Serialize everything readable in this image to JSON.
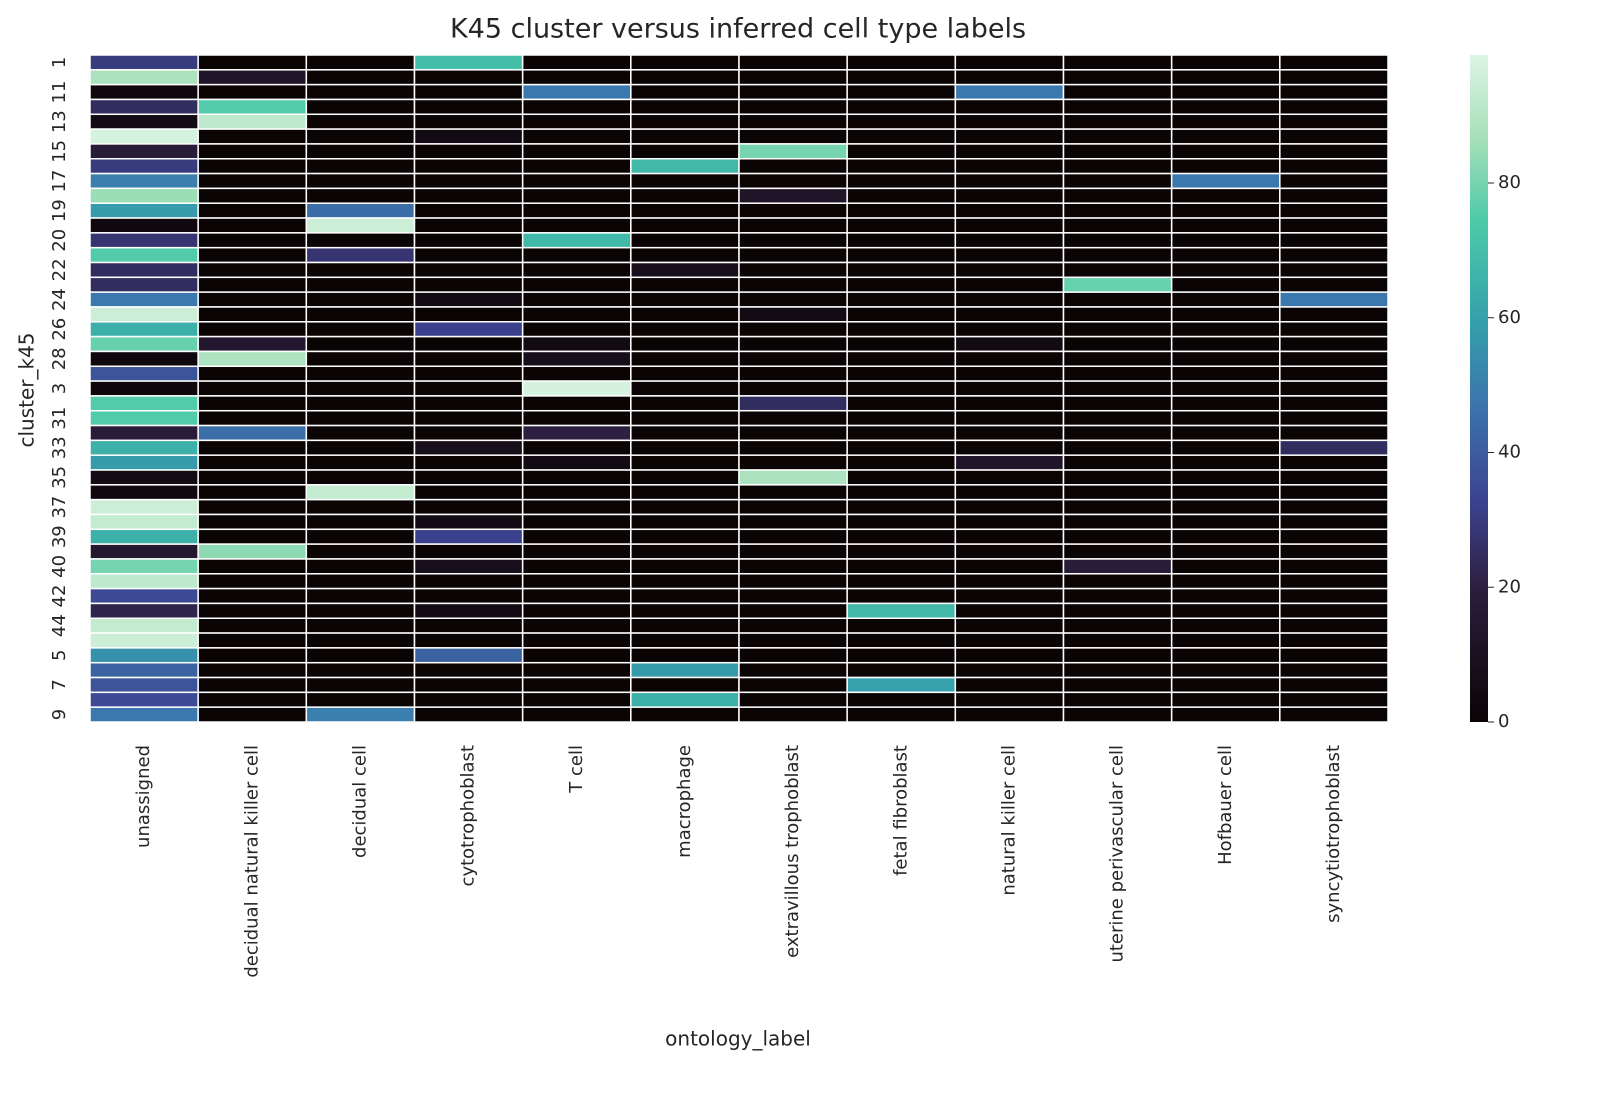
{
  "chart_data": {
    "type": "heatmap",
    "title": "K45 cluster versus inferred cell type labels",
    "x_label": "ontology_label",
    "y_label": "cluster_k45",
    "categories": [
      "unassigned",
      "decidual natural killer cell",
      "decidual cell",
      "cytotrophoblast",
      "T cell",
      "macrophage",
      "extravillous trophoblast",
      "fetal fibroblast",
      "natural killer cell",
      "uterine perivascular cell",
      "Hofbauer cell",
      "syncytiotrophoblast"
    ],
    "y_categories": [
      "1",
      null,
      "11",
      null,
      "13",
      null,
      "15",
      null,
      "17",
      null,
      "19",
      null,
      "20",
      null,
      "22",
      null,
      "24",
      null,
      "26",
      null,
      "28",
      null,
      "3",
      null,
      "31",
      null,
      "33",
      null,
      "35",
      null,
      "37",
      null,
      "39",
      null,
      "40",
      null,
      "42",
      null,
      "44",
      null,
      "5",
      null,
      "7",
      null,
      "9"
    ],
    "values": [
      [
        30,
        0,
        0,
        70,
        0,
        0,
        0,
        0,
        0,
        0,
        0,
        0
      ],
      [
        88,
        12,
        0,
        0,
        0,
        0,
        0,
        0,
        0,
        0,
        0,
        0
      ],
      [
        3,
        0,
        0,
        0,
        48,
        0,
        0,
        0,
        48,
        0,
        0,
        0
      ],
      [
        25,
        75,
        0,
        0,
        0,
        0,
        0,
        0,
        0,
        0,
        0,
        0
      ],
      [
        5,
        92,
        0,
        0,
        0,
        0,
        0,
        0,
        0,
        0,
        0,
        0
      ],
      [
        97,
        0,
        0,
        5,
        0,
        0,
        0,
        0,
        0,
        0,
        0,
        0
      ],
      [
        18,
        0,
        0,
        0,
        0,
        0,
        80,
        0,
        0,
        0,
        0,
        0
      ],
      [
        30,
        0,
        0,
        0,
        0,
        68,
        0,
        0,
        0,
        0,
        0,
        0
      ],
      [
        50,
        0,
        0,
        0,
        0,
        0,
        0,
        0,
        0,
        0,
        48,
        0
      ],
      [
        85,
        0,
        0,
        0,
        0,
        0,
        12,
        0,
        0,
        0,
        0,
        0
      ],
      [
        58,
        0,
        45,
        0,
        0,
        0,
        0,
        0,
        0,
        0,
        0,
        0
      ],
      [
        3,
        0,
        95,
        0,
        0,
        0,
        0,
        0,
        0,
        0,
        0,
        0
      ],
      [
        28,
        0,
        0,
        0,
        68,
        0,
        0,
        0,
        0,
        0,
        0,
        0
      ],
      [
        75,
        0,
        28,
        0,
        0,
        0,
        0,
        0,
        0,
        0,
        0,
        0
      ],
      [
        25,
        0,
        0,
        0,
        0,
        8,
        0,
        0,
        0,
        0,
        0,
        0
      ],
      [
        25,
        0,
        0,
        0,
        0,
        0,
        0,
        0,
        0,
        78,
        0,
        0
      ],
      [
        48,
        0,
        0,
        5,
        0,
        0,
        0,
        0,
        0,
        0,
        0,
        48
      ],
      [
        95,
        0,
        0,
        0,
        0,
        0,
        5,
        0,
        0,
        0,
        0,
        0
      ],
      [
        65,
        0,
        0,
        32,
        0,
        0,
        0,
        0,
        0,
        0,
        0,
        0
      ],
      [
        78,
        15,
        0,
        0,
        5,
        0,
        0,
        0,
        5,
        0,
        0,
        0
      ],
      [
        2,
        88,
        0,
        0,
        8,
        0,
        0,
        0,
        0,
        0,
        0,
        0
      ],
      [
        38,
        0,
        0,
        0,
        0,
        0,
        0,
        0,
        0,
        0,
        0,
        0
      ],
      [
        2,
        0,
        0,
        0,
        97,
        0,
        0,
        0,
        0,
        0,
        0,
        0
      ],
      [
        75,
        0,
        0,
        0,
        0,
        0,
        25,
        0,
        0,
        0,
        0,
        0
      ],
      [
        75,
        0,
        0,
        0,
        0,
        0,
        0,
        0,
        0,
        0,
        0,
        0
      ],
      [
        18,
        45,
        0,
        0,
        20,
        0,
        0,
        0,
        0,
        0,
        0,
        0
      ],
      [
        65,
        0,
        0,
        8,
        0,
        0,
        0,
        0,
        0,
        0,
        0,
        25
      ],
      [
        58,
        0,
        0,
        0,
        5,
        0,
        0,
        0,
        12,
        0,
        0,
        0
      ],
      [
        5,
        0,
        0,
        0,
        0,
        0,
        88,
        0,
        0,
        0,
        0,
        0
      ],
      [
        3,
        0,
        93,
        0,
        0,
        0,
        0,
        0,
        0,
        0,
        0,
        0
      ],
      [
        95,
        0,
        0,
        0,
        0,
        0,
        0,
        0,
        0,
        0,
        0,
        0
      ],
      [
        93,
        0,
        0,
        5,
        0,
        0,
        0,
        0,
        0,
        0,
        0,
        0
      ],
      [
        65,
        0,
        0,
        32,
        0,
        0,
        0,
        0,
        0,
        0,
        0,
        0
      ],
      [
        15,
        83,
        0,
        0,
        0,
        0,
        0,
        0,
        0,
        0,
        0,
        0
      ],
      [
        80,
        0,
        0,
        8,
        0,
        0,
        0,
        0,
        0,
        18,
        0,
        0
      ],
      [
        92,
        0,
        0,
        0,
        0,
        0,
        0,
        0,
        0,
        0,
        0,
        0
      ],
      [
        35,
        0,
        0,
        0,
        0,
        0,
        0,
        0,
        0,
        0,
        0,
        0
      ],
      [
        22,
        0,
        0,
        5,
        0,
        0,
        0,
        68,
        0,
        0,
        0,
        0
      ],
      [
        93,
        0,
        0,
        0,
        0,
        0,
        0,
        0,
        0,
        0,
        0,
        0
      ],
      [
        95,
        0,
        0,
        0,
        0,
        0,
        0,
        0,
        0,
        0,
        0,
        0
      ],
      [
        55,
        0,
        0,
        42,
        0,
        0,
        0,
        0,
        0,
        0,
        0,
        0
      ],
      [
        42,
        0,
        0,
        0,
        0,
        58,
        0,
        0,
        0,
        0,
        0,
        0
      ],
      [
        38,
        0,
        0,
        0,
        0,
        0,
        0,
        60,
        0,
        0,
        0,
        0
      ],
      [
        35,
        0,
        0,
        0,
        0,
        65,
        0,
        0,
        0,
        0,
        0,
        0
      ],
      [
        48,
        0,
        50,
        0,
        0,
        0,
        0,
        0,
        0,
        0,
        0,
        0
      ]
    ],
    "colormap": "mako",
    "zlim": [
      0,
      99
    ],
    "zticks": [
      0,
      20,
      40,
      60,
      80
    ]
  }
}
